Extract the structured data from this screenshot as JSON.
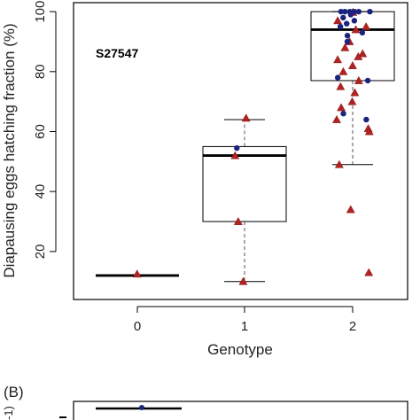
{
  "chart_data": {
    "type": "box",
    "annotation": "S27547",
    "xlabel": "Genotype",
    "ylabel": "Diapausing eggs hatching fraction (%)",
    "categories": [
      "0",
      "1",
      "2"
    ],
    "yticks": [
      20,
      40,
      60,
      80,
      100
    ],
    "ylim": [
      4,
      103
    ],
    "boxes": [
      {
        "category": "0",
        "min": 12,
        "q1": 12,
        "median": 12,
        "q3": 12,
        "max": 12
      },
      {
        "category": "1",
        "min": 10,
        "q1": 30,
        "median": 52,
        "q3": 55,
        "max": 64
      },
      {
        "category": "2",
        "min": 49,
        "q1": 77,
        "median": 94,
        "q3": 100,
        "max": 100
      }
    ],
    "series": [
      {
        "shape": "triangle",
        "color": "#b22222",
        "points": [
          {
            "x": "0",
            "y": 12.5
          },
          {
            "x": "1",
            "y": 64.5
          },
          {
            "x": "1",
            "y": 52
          },
          {
            "x": "1",
            "y": 30
          },
          {
            "x": "1",
            "y": 10
          },
          {
            "x": "2",
            "y": 99.8
          },
          {
            "x": "2",
            "y": 97
          },
          {
            "x": "2",
            "y": 95
          },
          {
            "x": "2",
            "y": 94
          },
          {
            "x": "2",
            "y": 90
          },
          {
            "x": "2",
            "y": 88
          },
          {
            "x": "2",
            "y": 86
          },
          {
            "x": "2",
            "y": 85
          },
          {
            "x": "2",
            "y": 84
          },
          {
            "x": "2",
            "y": 82
          },
          {
            "x": "2",
            "y": 80
          },
          {
            "x": "2",
            "y": 77
          },
          {
            "x": "2",
            "y": 75
          },
          {
            "x": "2",
            "y": 73
          },
          {
            "x": "2",
            "y": 70
          },
          {
            "x": "2",
            "y": 68
          },
          {
            "x": "2",
            "y": 64
          },
          {
            "x": "2",
            "y": 61
          },
          {
            "x": "2",
            "y": 60
          },
          {
            "x": "2",
            "y": 49
          },
          {
            "x": "2",
            "y": 34
          },
          {
            "x": "2",
            "y": 13
          }
        ]
      },
      {
        "shape": "circle",
        "color": "#1a237e",
        "points": [
          {
            "x": "1",
            "y": 54.5
          },
          {
            "x": "2",
            "y": 100
          },
          {
            "x": "2",
            "y": 100
          },
          {
            "x": "2",
            "y": 100
          },
          {
            "x": "2",
            "y": 100
          },
          {
            "x": "2",
            "y": 100
          },
          {
            "x": "2",
            "y": 100
          },
          {
            "x": "2",
            "y": 99
          },
          {
            "x": "2",
            "y": 98
          },
          {
            "x": "2",
            "y": 97
          },
          {
            "x": "2",
            "y": 96
          },
          {
            "x": "2",
            "y": 95
          },
          {
            "x": "2",
            "y": 93
          },
          {
            "x": "2",
            "y": 92
          },
          {
            "x": "2",
            "y": 90
          },
          {
            "x": "2",
            "y": 78
          },
          {
            "x": "2",
            "y": 77
          },
          {
            "x": "2",
            "y": 66
          },
          {
            "x": "2",
            "y": 64
          }
        ]
      }
    ]
  },
  "panel_b": {
    "label": "(B)",
    "ylabel_fragment": "-1)"
  }
}
